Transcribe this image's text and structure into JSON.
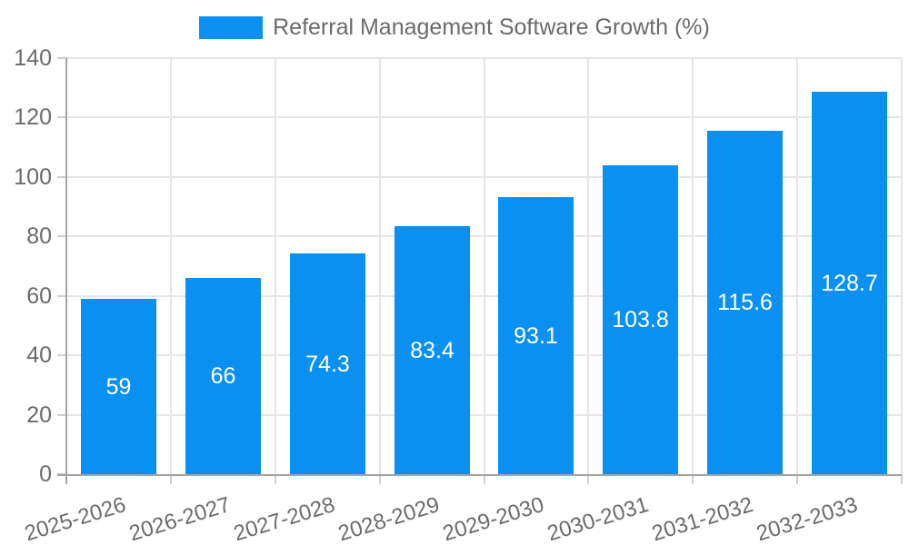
{
  "chart_data": {
    "type": "bar",
    "legend": {
      "position": "top"
    },
    "categories": [
      "2025-2026",
      "2026-2027",
      "2027-2028",
      "2028-2029",
      "2029-2030",
      "2030-2031",
      "2031-2032",
      "2032-2033"
    ],
    "series": [
      {
        "name": "Referral Management Software Growth (%)",
        "values": [
          59,
          66,
          74.3,
          83.4,
          93.1,
          103.8,
          115.6,
          128.7
        ],
        "value_labels": [
          "59",
          "66",
          "74.3",
          "83.4",
          "93.1",
          "103.8",
          "115.6",
          "128.7"
        ]
      }
    ],
    "xlabel": "",
    "ylabel": "",
    "ylim": [
      0,
      140
    ],
    "yticks": [
      0,
      20,
      40,
      60,
      80,
      100,
      120,
      140
    ],
    "grid": true,
    "colors": {
      "bar": "#0a90f0",
      "grid_line": "#e5e5e5",
      "tick_mark": "#cfcfcf",
      "axis_line": "#a3a3a3",
      "tick_text": "#6b6b6b",
      "legend_text": "#6b6b6b",
      "bar_label_text": "#ffffff",
      "background": "#ffffff"
    }
  }
}
